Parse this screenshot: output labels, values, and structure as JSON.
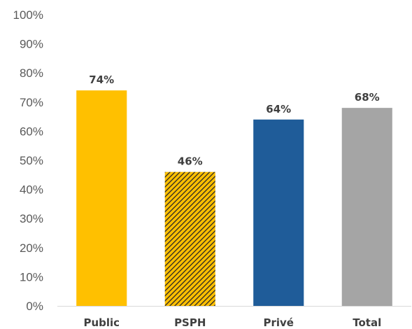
{
  "chart_data": {
    "type": "bar",
    "categories": [
      "Public",
      "PSPH",
      "Privé",
      "Total"
    ],
    "values": [
      74,
      46,
      64,
      68
    ],
    "data_labels": [
      "74%",
      "46%",
      "64%",
      "68%"
    ],
    "title": "",
    "xlabel": "",
    "ylabel": "",
    "ylim": [
      0,
      100
    ],
    "y_ticks": [
      "0%",
      "10%",
      "20%",
      "30%",
      "40%",
      "50%",
      "60%",
      "70%",
      "80%",
      "90%",
      "100%"
    ],
    "grid": false,
    "legend": "none",
    "colors": [
      "#FFC000",
      "#FFC000",
      "#1F5C99",
      "#A5A5A5"
    ],
    "patterns": [
      "solid",
      "hatched-dark",
      "solid",
      "solid"
    ],
    "hatch_color": "#262626"
  }
}
